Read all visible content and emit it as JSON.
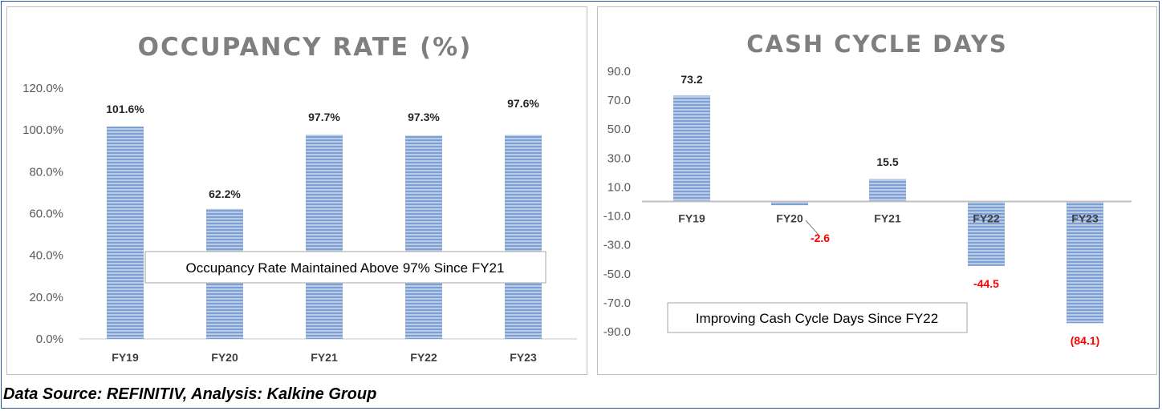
{
  "footer": "Data Source: REFINITIV, Analysis: Kalkine Group",
  "colors": {
    "bar_fill": "#a9c1e4",
    "bar_stripe": "#6f94cc",
    "negative_label": "#ff0000",
    "positive_label": "#262626",
    "frame": "#2e5597"
  },
  "chart_data": [
    {
      "type": "bar",
      "title": "OCCUPANCY RATE (%)",
      "categories": [
        "FY19",
        "FY20",
        "FY21",
        "FY22",
        "FY23"
      ],
      "values": [
        101.6,
        62.2,
        97.7,
        97.3,
        97.6
      ],
      "data_labels": [
        "101.6%",
        "62.2%",
        "97.7%",
        "97.3%",
        "97.6%"
      ],
      "ylim": [
        0,
        120
      ],
      "yticks": [
        0,
        20,
        40,
        60,
        80,
        100,
        120
      ],
      "ytick_labels": [
        "0.0%",
        "20.0%",
        "40.0%",
        "60.0%",
        "80.0%",
        "100.0%",
        "120.0%"
      ],
      "grid": false,
      "annotation": "Occupancy Rate Maintained Above 97% Since FY21"
    },
    {
      "type": "bar",
      "title": "CASH CYCLE DAYS",
      "categories": [
        "FY19",
        "FY20",
        "FY21",
        "FY22",
        "FY23"
      ],
      "values": [
        73.2,
        -2.6,
        15.5,
        -44.5,
        -84.1
      ],
      "data_labels": [
        "73.2",
        "-2.6",
        "15.5",
        "-44.5",
        "(84.1)"
      ],
      "ylim": [
        -100,
        90
      ],
      "yticks": [
        90,
        70,
        50,
        30,
        10,
        -10,
        -30,
        -50,
        -70,
        -90
      ],
      "ytick_labels": [
        "90.0",
        "70.0",
        "50.0",
        "30.0",
        "10.0",
        "-10.0",
        "-30.0",
        "-50.0",
        "-70.0",
        "-90.0"
      ],
      "grid": false,
      "annotation": "Improving Cash Cycle Days Since FY22"
    }
  ]
}
